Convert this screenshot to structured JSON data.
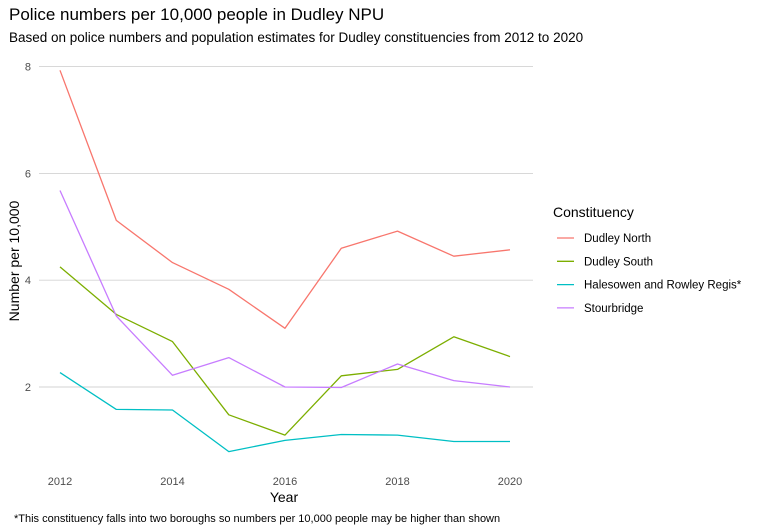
{
  "chart_data": {
    "type": "line",
    "title": "Police numbers per 10,000 people in Dudley NPU",
    "subtitle": "Based on police numbers and population estimates for Dudley constituencies from 2012 to 2020",
    "xlabel": "Year",
    "ylabel": "Number per 10,000",
    "caption": "*This constituency falls into two boroughs so numbers per 10,000 people may be higher than shown",
    "x": [
      2012,
      2013,
      2014,
      2015,
      2016,
      2017,
      2018,
      2019,
      2020
    ],
    "x_ticks": [
      "2012",
      "2014",
      "2016",
      "2018",
      "2020"
    ],
    "y_ticks": [
      "2",
      "4",
      "6",
      "8"
    ],
    "xlim": [
      2012,
      2020
    ],
    "ylim": [
      0.45,
      8.2
    ],
    "grid": "horizontal",
    "legend": {
      "title": "Constituency",
      "placement": "right"
    },
    "series": [
      {
        "name": "Dudley North",
        "color": "#F8766D",
        "values": [
          7.93,
          5.12,
          4.33,
          3.83,
          3.1,
          4.6,
          4.92,
          4.45,
          4.57
        ]
      },
      {
        "name": "Dudley South",
        "color": "#7CAE00",
        "values": [
          4.25,
          3.36,
          2.85,
          1.48,
          1.1,
          2.21,
          2.33,
          2.94,
          2.57
        ]
      },
      {
        "name": "Halesowen and Rowley Regis*",
        "color": "#00BFC4",
        "values": [
          2.27,
          1.58,
          1.57,
          0.79,
          1.0,
          1.11,
          1.1,
          0.98,
          0.98
        ]
      },
      {
        "name": "Stourbridge",
        "color": "#C77CFF",
        "values": [
          5.68,
          3.33,
          2.22,
          2.55,
          2.0,
          1.99,
          2.43,
          2.12,
          2.0
        ]
      }
    ]
  }
}
